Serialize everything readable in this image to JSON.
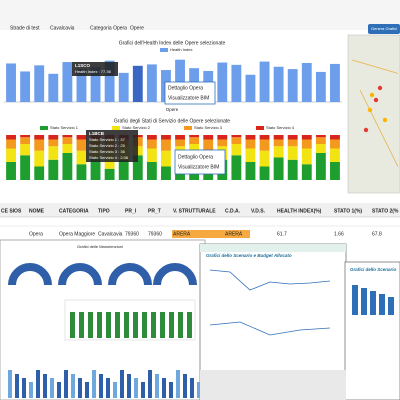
{
  "nav": {
    "items": [
      "Strade di test",
      "Cavalcavia",
      "Categoria Opera",
      "Opere"
    ],
    "button": "Genera Grafici"
  },
  "health_chart": {
    "type": "bar",
    "title": "Grafici dell'Health Index delle Opere selezionate",
    "legend": "Health Index",
    "x_label": "Opere",
    "color": "#6d9eeb",
    "ylim": [
      0,
      100
    ],
    "values": [
      82,
      65,
      78,
      60,
      85,
      70,
      74,
      88,
      62,
      77,
      80,
      68,
      90,
      72,
      66,
      84,
      79,
      58,
      86,
      75,
      70,
      83,
      64,
      81
    ],
    "tooltip": {
      "title": "L1SCO",
      "text": "Health Index : 77,36"
    }
  },
  "popup_1": [
    "Dettaglio Opera",
    "Visualizzatore BIM"
  ],
  "service_chart": {
    "type": "stacked_bar",
    "title": "Grafici degli Stati di Servizio delle Opere selezionate",
    "ylim": [
      0,
      100
    ],
    "series": [
      {
        "name": "Stato Servizio 1",
        "color": "#1e9e2e",
        "values": [
          40,
          55,
          30,
          45,
          60,
          35,
          50,
          25,
          45,
          55,
          40,
          30,
          50,
          60,
          35,
          45,
          55,
          40,
          30,
          50,
          45,
          35,
          60,
          40
        ]
      },
      {
        "name": "Stato Servizio 2",
        "color": "#f2e313",
        "values": [
          30,
          25,
          35,
          30,
          20,
          30,
          25,
          40,
          30,
          20,
          30,
          35,
          25,
          20,
          30,
          30,
          25,
          30,
          35,
          25,
          30,
          35,
          20,
          30
        ]
      },
      {
        "name": "Stato Servizio 3",
        "color": "#f39a1e",
        "values": [
          20,
          15,
          25,
          15,
          15,
          25,
          15,
          25,
          15,
          20,
          20,
          25,
          15,
          15,
          25,
          15,
          15,
          20,
          25,
          15,
          15,
          20,
          15,
          20
        ]
      },
      {
        "name": "Stato Servizio 4",
        "color": "#d9261c",
        "values": [
          10,
          5,
          10,
          10,
          5,
          10,
          10,
          10,
          10,
          5,
          10,
          10,
          10,
          5,
          10,
          10,
          5,
          10,
          10,
          10,
          10,
          10,
          5,
          10
        ]
      }
    ],
    "tooltip": {
      "title": "L1BCB",
      "lines": [
        "Stato Servizio 1 : 37",
        "Stato Servizio 2 : 25",
        "Stato Servizio 3 : 36",
        "Stato Servizio 4 : 2.06"
      ]
    }
  },
  "popup_2": [
    "Dettaglio Opera",
    "Visualizzatore BIM"
  ],
  "table": {
    "headers": [
      "CE SIOS",
      "NOME",
      "CATEGORIA",
      "TIPO",
      "PR_I",
      "PR_T",
      "V. STRUTTURALE",
      "C.D.A.",
      "V.D.S.",
      "HEALTH INDEX(%)",
      "STATO 1(%)",
      "STATO 2(%"
    ],
    "rows": [
      [
        "",
        "Opera",
        "Opera Maggiore",
        "Cavalcavia",
        "79360",
        "79360",
        "ARERA",
        "ARERA",
        "",
        "61.7",
        "1.66",
        "67.8"
      ]
    ]
  },
  "panels": {
    "left_title": "Grafici delle Manutenzioni",
    "middle_title": "Grafici dello Scenario e Budget Allocato",
    "right_title": "Grafici dello Scenario"
  }
}
